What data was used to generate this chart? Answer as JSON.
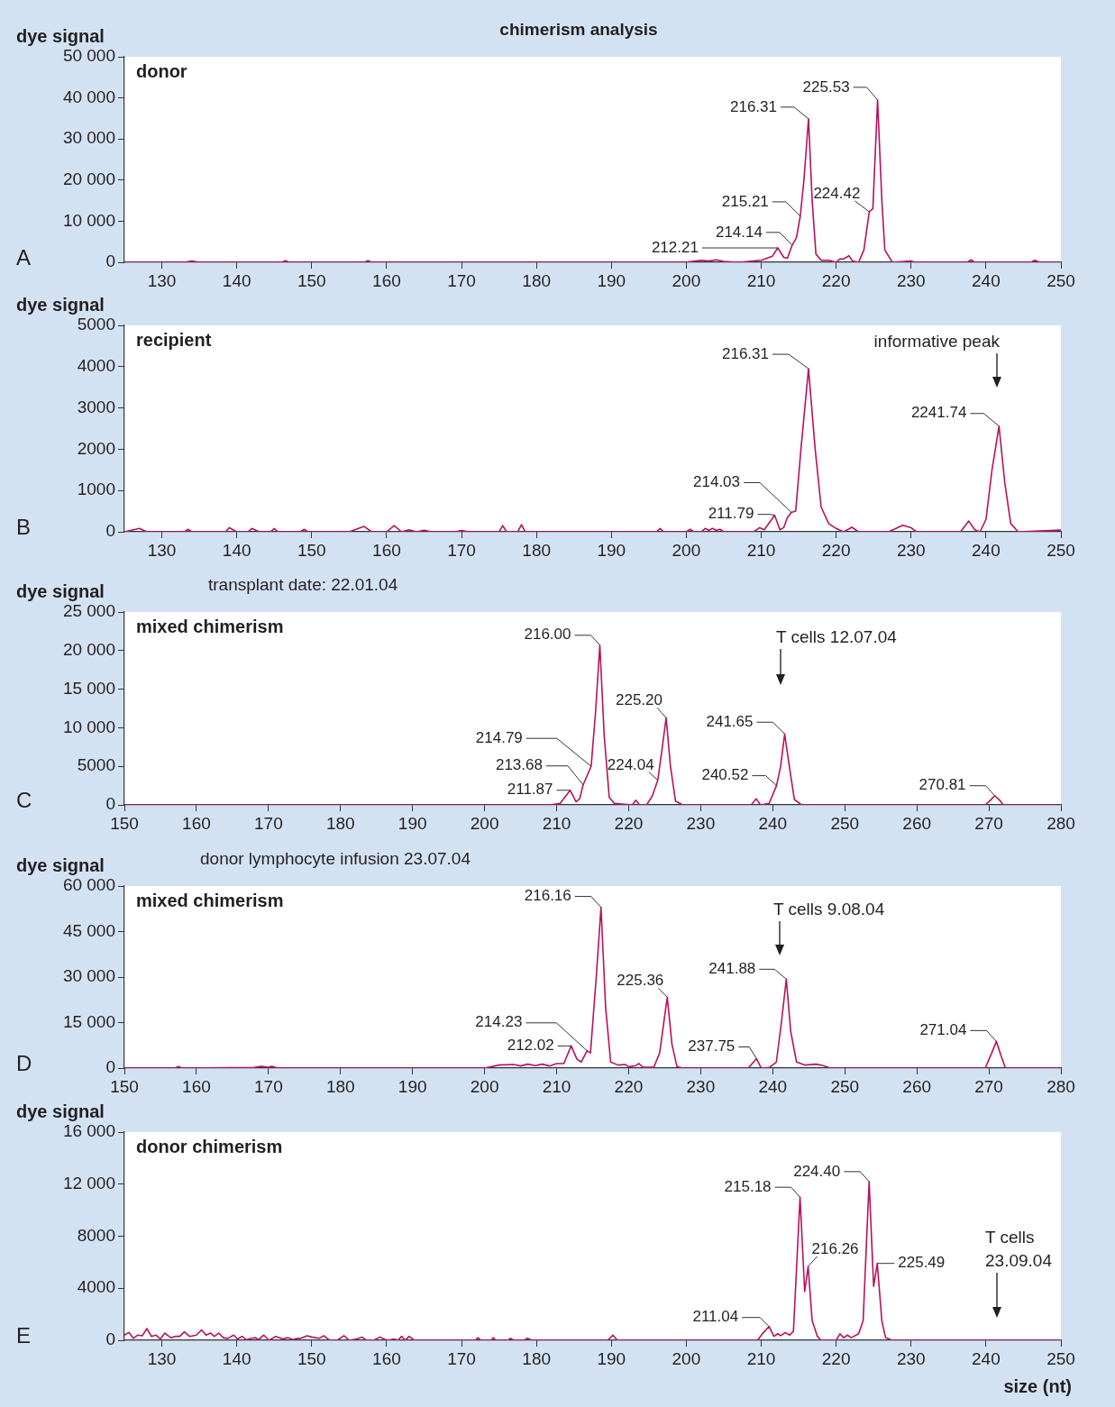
{
  "chart_data": [
    {
      "type": "line",
      "subtitle": "chimerism analysis",
      "title": "donor",
      "ylabel": "dye signal",
      "color": "#b5135f",
      "x": [
        125,
        133,
        134,
        135,
        146,
        146.5,
        147,
        157,
        157.5,
        158,
        200,
        202,
        203,
        204,
        205,
        207,
        210,
        211.5,
        212.21,
        213,
        213.5,
        214.14,
        214.7,
        215.21,
        215.7,
        216.31,
        216.8,
        217.3,
        218,
        219,
        220,
        220.5,
        221,
        221.7,
        222.2,
        223,
        223.7,
        224.42,
        224.9,
        225.53,
        226.1,
        226.5,
        227.5,
        230,
        230.5,
        237.5,
        238,
        238.5,
        246,
        246.5,
        247.2,
        250
      ],
      "values": [
        0,
        0,
        300,
        0,
        0,
        400,
        0,
        0,
        400,
        0,
        0,
        500,
        300,
        600,
        200,
        0,
        500,
        1500,
        3500,
        1200,
        1000,
        4200,
        6000,
        11200,
        20000,
        34900,
        15000,
        2000,
        500,
        500,
        0,
        800,
        800,
        1600,
        300,
        0,
        3000,
        12300,
        13000,
        39500,
        15000,
        3000,
        0,
        300,
        0,
        0,
        600,
        0,
        0,
        500,
        0,
        0
      ],
      "xlim": [
        125,
        250
      ],
      "xticks": [
        130,
        140,
        150,
        160,
        170,
        180,
        190,
        200,
        210,
        220,
        230,
        240,
        250
      ],
      "ylim": [
        0,
        50000
      ],
      "yticks": [
        0,
        {
          "value": 10000,
          "label": "10 000"
        },
        {
          "value": 20000,
          "label": "20 000"
        },
        {
          "value": 30000,
          "label": "30 000"
        },
        {
          "value": 40000,
          "label": "40 000"
        },
        {
          "value": 50000,
          "label": "50 000"
        }
      ],
      "annotations": [
        "A",
        {
          "text": "216.31",
          "x": 216.31,
          "y": 34900
        },
        {
          "text": "225.53",
          "x": 225.53,
          "y": 39500
        },
        {
          "text": "215.21",
          "x": 215.21,
          "y": 11200
        },
        {
          "text": "214.14",
          "x": 214.14,
          "y": 4200
        },
        {
          "text": "212.21",
          "x": 212.21,
          "y": 3500
        },
        {
          "text": "224.42",
          "x": 224.42,
          "y": 12300
        }
      ]
    },
    {
      "type": "line",
      "title": "recipient",
      "ylabel": "dye signal",
      "color": "#b5135f",
      "x": [
        125,
        127,
        128,
        133,
        133.5,
        134,
        138.5,
        139,
        140,
        141.5,
        142,
        143,
        144.5,
        145,
        145.5,
        148.5,
        149,
        149.5,
        155,
        157,
        158,
        160,
        161,
        162,
        163,
        164,
        165,
        166,
        169,
        170,
        171,
        175,
        175.5,
        176,
        177.5,
        178,
        178.5,
        196,
        196.5,
        197,
        200,
        200.5,
        201,
        202,
        202.5,
        203,
        203.5,
        204,
        204.5,
        205,
        209,
        209.8,
        210.4,
        211.79,
        212.5,
        213,
        213.5,
        214.03,
        214.6,
        215.3,
        216.31,
        217.2,
        218,
        219,
        220,
        221,
        222.1,
        223,
        227,
        228.9,
        230,
        230.7,
        236.6,
        237.7,
        238.5,
        239.2,
        240,
        240.8,
        241.74,
        242.5,
        243.3,
        244.3,
        250
      ],
      "values": [
        0,
        80,
        0,
        0,
        60,
        0,
        0,
        100,
        0,
        0,
        80,
        0,
        0,
        80,
        0,
        0,
        60,
        0,
        0,
        130,
        0,
        0,
        150,
        0,
        50,
        0,
        40,
        0,
        0,
        30,
        0,
        0,
        150,
        0,
        0,
        170,
        0,
        0,
        80,
        0,
        0,
        60,
        0,
        0,
        80,
        40,
        80,
        40,
        60,
        0,
        0,
        100,
        50,
        400,
        50,
        100,
        350,
        470,
        500,
        2000,
        3950,
        2000,
        600,
        200,
        80,
        0,
        110,
        0,
        0,
        160,
        100,
        0,
        0,
        260,
        50,
        0,
        300,
        1500,
        2560,
        1200,
        200,
        0,
        40
      ],
      "xlim": [
        125,
        250
      ],
      "xticks": [
        130,
        140,
        150,
        160,
        170,
        180,
        190,
        200,
        210,
        220,
        230,
        240,
        250
      ],
      "ylim": [
        0,
        5000
      ],
      "yticks": [
        0,
        1000,
        2000,
        3000,
        4000,
        5000
      ],
      "annotations": [
        "B",
        {
          "text": "216.31",
          "x": 216.31,
          "y": 3950
        },
        {
          "text": "2241.74",
          "x": 241.74,
          "y": 2560
        },
        {
          "text": "214.03",
          "x": 214.03,
          "y": 470
        },
        {
          "text": "211.79",
          "x": 211.79,
          "y": 400
        },
        "informative peak"
      ]
    },
    {
      "type": "line",
      "subtitle": "transplant date: 22.01.04",
      "title": "mixed chimerism",
      "ylabel": "dye signal",
      "color": "#b5135f",
      "x": [
        150,
        209,
        210.5,
        211.87,
        212.7,
        213.2,
        213.68,
        214.79,
        215.4,
        216,
        216.6,
        217.3,
        218,
        220.5,
        221,
        221.5,
        222.5,
        223.3,
        224.04,
        224.6,
        225.2,
        225.8,
        226.5,
        227.5,
        237,
        237.7,
        238.3,
        239.5,
        240.52,
        241.1,
        241.65,
        242.3,
        243,
        244,
        269.5,
        270.2,
        270.81,
        271.5,
        272,
        280
      ],
      "values": [
        0,
        0,
        200,
        1900,
        400,
        800,
        2600,
        5000,
        12000,
        20700,
        9000,
        1000,
        200,
        0,
        600,
        0,
        0,
        1200,
        3200,
        7000,
        11300,
        5000,
        500,
        0,
        0,
        800,
        0,
        200,
        2500,
        5000,
        9200,
        5000,
        700,
        0,
        0,
        600,
        1200,
        600,
        0,
        0
      ],
      "xlim": [
        150,
        280
      ],
      "xticks": [
        150,
        160,
        170,
        180,
        190,
        200,
        210,
        220,
        230,
        240,
        250,
        260,
        270,
        280
      ],
      "ylim": [
        0,
        25000
      ],
      "yticks": [
        0,
        5000,
        {
          "value": 10000,
          "label": "10 000"
        },
        {
          "value": 15000,
          "label": "15 000"
        },
        {
          "value": 20000,
          "label": "20 000"
        },
        {
          "value": 25000,
          "label": "25 000"
        }
      ],
      "annotations": [
        "C",
        {
          "text": "216.00",
          "x": 216,
          "y": 20700
        },
        {
          "text": "225.20",
          "x": 225.2,
          "y": 11300
        },
        {
          "text": "241.65",
          "x": 241.65,
          "y": 9200
        },
        {
          "text": "214.79",
          "x": 214.79,
          "y": 5000
        },
        {
          "text": "213.68",
          "x": 213.68,
          "y": 2600
        },
        {
          "text": "211.87",
          "x": 211.87,
          "y": 1900
        },
        {
          "text": "224.04",
          "x": 224.04,
          "y": 3200
        },
        {
          "text": "240.52",
          "x": 240.52,
          "y": 2500
        },
        {
          "text": "270.81",
          "x": 270.81,
          "y": 1200
        },
        "T cells 12.07.04"
      ]
    },
    {
      "type": "line",
      "subtitle": "donor lymphocyte infusion 23.07.04",
      "title": "mixed chimerism",
      "ylabel": "dye signal",
      "color": "#b5135f",
      "x": [
        150,
        157,
        157.5,
        158,
        168,
        169,
        170,
        170.5,
        171,
        172,
        200,
        202,
        204,
        205,
        206,
        207,
        208,
        209,
        210,
        211,
        212.02,
        212.8,
        213.4,
        214.23,
        214.7,
        215.5,
        216.16,
        216.8,
        217.5,
        218.5,
        219.5,
        220,
        221,
        221.4,
        222,
        223.5,
        224.3,
        225.36,
        226,
        226.7,
        227.5,
        236.6,
        237.75,
        238.4,
        239.5,
        240.5,
        241.2,
        241.88,
        242.5,
        243.3,
        244.5,
        246,
        247,
        248,
        269.5,
        270.4,
        271.04,
        271.7,
        272.3,
        280
      ],
      "values": [
        0,
        0,
        500,
        0,
        200,
        600,
        300,
        600,
        200,
        0,
        0,
        1000,
        1200,
        700,
        1300,
        800,
        1300,
        700,
        1500,
        1500,
        7300,
        3000,
        2000,
        5700,
        5000,
        30000,
        53000,
        20000,
        2000,
        1000,
        1200,
        400,
        800,
        1500,
        300,
        300,
        5000,
        23400,
        8000,
        500,
        0,
        0,
        3100,
        0,
        200,
        2000,
        15000,
        29300,
        12000,
        2000,
        1000,
        1300,
        800,
        0,
        0,
        5000,
        8800,
        4000,
        0,
        0
      ],
      "xlim": [
        150,
        280
      ],
      "xticks": [
        150,
        160,
        170,
        180,
        190,
        200,
        210,
        220,
        230,
        240,
        250,
        260,
        270,
        280
      ],
      "ylim": [
        0,
        60000
      ],
      "yticks": [
        0,
        {
          "value": 15000,
          "label": "15 000"
        },
        {
          "value": 30000,
          "label": "30 000"
        },
        {
          "value": 45000,
          "label": "45 000"
        },
        {
          "value": 60000,
          "label": "60 000"
        }
      ],
      "annotations": [
        "D",
        {
          "text": "216.16",
          "x": 216.16,
          "y": 53000
        },
        {
          "text": "225.36",
          "x": 225.36,
          "y": 23400
        },
        {
          "text": "241.88",
          "x": 241.88,
          "y": 29300
        },
        {
          "text": "271.04",
          "x": 271.04,
          "y": 8800
        },
        {
          "text": "212.02",
          "x": 212.02,
          "y": 7300
        },
        {
          "text": "214.23",
          "x": 214.23,
          "y": 5700
        },
        {
          "text": "237.75",
          "x": 237.75,
          "y": 3100
        },
        "T cells 9.08.04"
      ]
    },
    {
      "type": "line",
      "title": "donor chimerism",
      "ylabel": "dye signal",
      "xlabel": "size (nt)",
      "color": "#b5135f",
      "x": [
        125,
        125.6,
        126.2,
        126.8,
        127.4,
        128,
        128.6,
        129.2,
        129.8,
        130.4,
        131.2,
        131.8,
        132.4,
        133,
        133.7,
        134.6,
        135.3,
        135.9,
        136.5,
        137,
        137.6,
        138.2,
        138.8,
        139.6,
        140.1,
        140.7,
        141.3,
        142,
        142.5,
        142.9,
        143.6,
        144.3,
        145.2,
        146.2,
        146.8,
        147.5,
        148.1,
        148.5,
        149.4,
        150,
        151,
        151.6,
        152.4,
        153.4,
        154.3,
        155,
        156,
        156.7,
        157.3,
        158.3,
        159.1,
        159.6,
        160.2,
        161,
        161.5,
        162,
        162.5,
        163,
        163.7,
        171.8,
        172.2,
        172.6,
        174,
        174.2,
        174.6,
        176.2,
        176.5,
        177,
        178.3,
        178.8,
        179.4,
        189.5,
        190.2,
        190.8,
        209.5,
        210.3,
        211.04,
        211.7,
        212.2,
        212.6,
        213.2,
        213.8,
        214.3,
        215.18,
        215.8,
        216.26,
        216.8,
        217.5,
        218,
        220,
        220.5,
        221,
        221.5,
        222,
        223,
        223.6,
        224.4,
        225,
        225.49,
        226.1,
        226.6,
        227.5,
        250
      ],
      "values": [
        400,
        600,
        150,
        400,
        350,
        900,
        300,
        400,
        100,
        550,
        200,
        300,
        300,
        650,
        300,
        400,
        800,
        400,
        550,
        300,
        550,
        200,
        150,
        400,
        100,
        300,
        50,
        150,
        200,
        50,
        400,
        0,
        300,
        100,
        200,
        50,
        150,
        150,
        350,
        250,
        150,
        350,
        0,
        0,
        350,
        0,
        100,
        250,
        0,
        0,
        250,
        100,
        0,
        100,
        0,
        300,
        0,
        300,
        0,
        0,
        200,
        0,
        0,
        200,
        0,
        0,
        150,
        0,
        0,
        150,
        0,
        0,
        400,
        0,
        0,
        600,
        1060,
        300,
        500,
        350,
        600,
        400,
        700,
        11000,
        3740,
        5680,
        1500,
        300,
        0,
        0,
        500,
        200,
        400,
        200,
        500,
        1500,
        12200,
        4140,
        5910,
        1500,
        200,
        0,
        0
      ],
      "xlim": [
        125,
        250
      ],
      "xticks": [
        130,
        140,
        150,
        160,
        170,
        180,
        190,
        200,
        210,
        220,
        230,
        240,
        250
      ],
      "ylim": [
        0,
        16000
      ],
      "yticks": [
        0,
        4000,
        8000,
        {
          "value": 12000,
          "label": "12 000"
        },
        {
          "value": 16000,
          "label": "16 000"
        }
      ],
      "annotations": [
        "E",
        {
          "text": "224.40",
          "x": 224.4,
          "y": 12200
        },
        {
          "text": "215.18",
          "x": 215.18,
          "y": 11000
        },
        {
          "text": "216.26",
          "x": 216.26,
          "y": 5680
        },
        {
          "text": "225.49",
          "x": 225.49,
          "y": 5910
        },
        {
          "text": "211.04",
          "x": 211.04,
          "y": 1060
        },
        "T cells\n23.09.04"
      ]
    }
  ]
}
